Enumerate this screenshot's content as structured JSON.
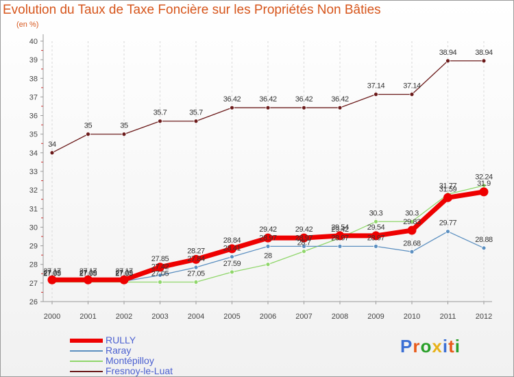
{
  "title": "Evolution du Taux de Taxe Foncière sur les Propriétés Non Bâties",
  "unit": "(en %)",
  "logo": {
    "text": "Proxiti",
    "letter_colors": [
      "#3b6fd4",
      "#e85a1a",
      "#2aa02a",
      "#e8b21a",
      "#3b6fd4",
      "#e85a1a",
      "#2aa02a"
    ]
  },
  "chart_data": {
    "type": "line",
    "title": "Evolution du Taux de Taxe Foncière sur les Propriétés Non Bâties",
    "ylabel": "(en %)",
    "xlabel": "",
    "ylim": [
      26,
      40
    ],
    "yticks": [
      26,
      27,
      28,
      29,
      30,
      31,
      32,
      33,
      34,
      35,
      36,
      37,
      38,
      39,
      40
    ],
    "grid": "vertical dashed",
    "legend_position": "bottom-left",
    "categories": [
      "2000",
      "2001",
      "2002",
      "2003",
      "2004",
      "2005",
      "2006",
      "2007",
      "2008",
      "2009",
      "2010",
      "2011",
      "2012"
    ],
    "series": [
      {
        "name": "Fresnoy-le-Luat",
        "color": "#6b1a1a",
        "values": [
          34,
          35,
          35,
          35.7,
          35.7,
          36.42,
          36.42,
          36.42,
          36.42,
          37.14,
          37.14,
          38.94,
          38.94
        ],
        "labels": [
          "34",
          "35",
          "35",
          "35.7",
          "35.7",
          "36.42",
          "36.42",
          "36.42",
          "36.42",
          "37.14",
          "37.14",
          "38.94",
          "38.94"
        ]
      },
      {
        "name": "Montépilloy",
        "color": "#8fd66a",
        "values": [
          27.05,
          27.05,
          27.05,
          27.05,
          27.05,
          27.59,
          28,
          28.7,
          29.42,
          30.3,
          30.3,
          31.77,
          32.24
        ],
        "labels": [
          "27.05",
          "27.05",
          "27.05",
          "27.05",
          "27.05",
          "27.59",
          "28",
          "28.7",
          "29.42",
          "30.3",
          "30.3",
          "31.77",
          "32.24"
        ]
      },
      {
        "name": "Raray",
        "color": "#5b8fc0",
        "values": [
          27.09,
          27.09,
          27.09,
          27.42,
          27.84,
          28.41,
          28.97,
          28.97,
          28.97,
          28.97,
          28.68,
          29.77,
          28.88
        ],
        "labels": [
          "27.09",
          "27.09",
          "27.09",
          "27.42",
          "27.84",
          "28.41",
          "28.97",
          "28.97",
          "28.97",
          "28.97",
          "28.68",
          "29.77",
          "28.88"
        ]
      },
      {
        "name": "RULLY",
        "color": "#ee0000",
        "values": [
          27.17,
          27.17,
          27.17,
          27.85,
          28.27,
          28.84,
          29.42,
          29.42,
          29.54,
          29.54,
          29.83,
          31.59,
          31.9
        ],
        "labels": [
          "27.17",
          "27.17",
          "27.17",
          "27.85",
          "28.27",
          "28.84",
          "29.42",
          "29.42",
          "29.54",
          "29.54",
          "29.83",
          "31.59",
          "31.9"
        ]
      }
    ],
    "legend": [
      "RULLY",
      "Raray",
      "Montépilloy",
      "Fresnoy-le-Luat"
    ]
  }
}
